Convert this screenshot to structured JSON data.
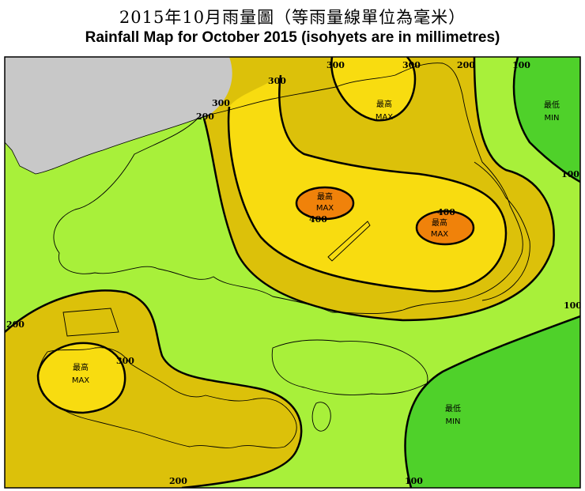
{
  "title_zh": "2015年10月雨量圖（等雨量線單位為毫米）",
  "title_en": "Rainfall Map for October 2015 (isohyets are in millimetres)",
  "colors": {
    "band_below_100": "#4fd12a",
    "band_100_200": "#a8f03a",
    "band_200_300": "#dcc10a",
    "band_300_400": "#f8dc10",
    "band_above_400": "#f0820a",
    "outside_area": "#c8c8c8",
    "isohyet_line": "#000000",
    "coastline": "#000000"
  },
  "isohyet_labels": [
    "100",
    "200",
    "300",
    "400"
  ],
  "extrema": [
    {
      "type": "max",
      "label_zh": "最高",
      "label_en": "MAX"
    },
    {
      "type": "min",
      "label_zh": "最低",
      "label_en": "MIN"
    }
  ]
}
